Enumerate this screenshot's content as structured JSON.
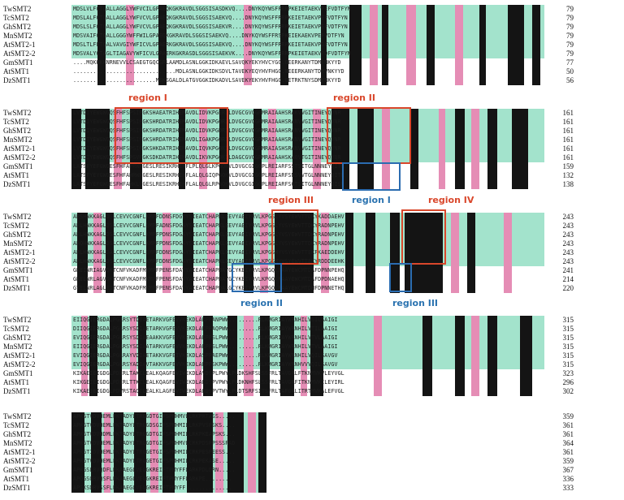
{
  "species": [
    "TwSMT2",
    "TcSMT2",
    "GhSMT2",
    "MnSMT2",
    "AtSMT2-1",
    "AtSMT2-2",
    "GmSMT1",
    "AtSMT1",
    "DzSMT1"
  ],
  "blocks": [
    {
      "rows": [
        {
          "seq": "MDSLVLFCTGALLAGGLYWFVCILGPAEQKGKRAVDLSGGSISASDKVQ....DNYKQYWSFFRRPKEIETAEKVPEFVDTFYN",
          "end": "79"
        },
        {
          "seq": "MDSLALFCTGALLAGGLYWFVCVLGPAEQKGKRAVDLSGGSISAEKVQ....DNYKQYWSFFRRPKEIETAEKVPEFVDTFYN",
          "end": "79"
        },
        {
          "seq": "MDSLSLFCTGALLAGGLYWFVCVLGPAEQKGKRAVDLSGGSISAEKVR....DNYKQYWSFFRRPKEIETAEKVPEFVDTFYN",
          "end": "79"
        },
        {
          "seq": "MDSVAIFCTGALLGGGYWFFWILGPAEQKGKRAVDLSGGSISAEKVQ....DNYKQYWSFFRSPKEIEKAEKVPEFVDTFYN",
          "end": "79"
        },
        {
          "seq": "MDSLTLFFTGALVAVGIYWFICVLGPAERKGKRAVDLSGGSISAEKVQ....DNYKQYWSFFRRPKEIETAEKVPDFVDTFYN",
          "end": "79"
        },
        {
          "seq": "MDSVALYCTAGLTIAGAVYWFICVLGPAERKGKRASDLSGGSISAEKVK....DNYKQYWSFFRRPKEIETAEKVPDFVDTFYN",
          "end": "79"
        },
        {
          "seq": "....MQKKKKNRNEVVLCSAEGTGQCSRLAAMDLASNLGGKIDKAEVLSAVQKYEKYHVCYGG.QEERKANYTDMVNKYYD",
          "end": "77"
        },
        {
          "seq": "...............................MDLASNLGGKIDKSDVLTAVEKYEQYHVFHGG.NEEERKANYTDMVNKYYD",
          "end": "50"
        },
        {
          "seq": ".........................MSKSGALDLATGVGGKIDKADVLSAVEKYEKYHVFHGG.GETRKTNYSDMVNKYYD",
          "end": "56"
        }
      ]
    },
    {
      "rows": [
        {
          "seq": "LVTDIYEWGWGQSFHFSPSIPGKSHAEATRIHEMAVDLIDVKPGERILDVGCGVGGPMRAIAAHSRAKVVGITINEYQVNR",
          "end": "161"
        },
        {
          "seq": "LVTDIYEWGWGQSFHFSPSIPGKSHRDATRIHEMAVDLIDVKPGQRILDVGCGVGGPMRAIAAHSRANVVGITINEYQVNR",
          "end": "161"
        },
        {
          "seq": "LVTDIYEWGWGQSFHFSPSIPGKSHRDATRIHEMAVDLIDVKPGDRILDVGCGVGGPMRAIAAHSRANVVGITINEYQVNR",
          "end": "161"
        },
        {
          "seq": "LVTDIYEWGWGQSFHFSPSIPGKSHRDATRIHEMAVDLIGAKPGQRILDVGCGVGGPMRAIAAHSRANVVGITINEYQVNR",
          "end": "161"
        },
        {
          "seq": "LVTDIYEWGWGQSFHFSPSIPGKSHKDATRIHEMAVDLIQVKPGQKILDVGCGVGGPMRAIASHSRANVVGITINEYQVNR",
          "end": "161"
        },
        {
          "seq": "LVTDIYEWGWGQSFHFSPSVPGKSDKDATRIHEMAVDLIKVKPGQKILDAGCGVGGPMRAIAAHSKAQVTGITINEYQVQR",
          "end": "161"
        },
        {
          "seq": "LATSFYEFGWGESFHFAPRWKGESLRESIKRHEHFLPLQLGLKPGQKVLDVGCGIGGPLREIARFSSTSITGLNNNEYQITR",
          "end": "159"
        },
        {
          "seq": "LATSFYEYGWGESFHFAHRWKGESLRESIKRHEHFLALQLGIQPGQKVLDVGCGIGGPLREIARFSNSVVTGLNNNEYQITR",
          "end": "132"
        },
        {
          "seq": "LATSFYEFGWGESFHFAHKLVGESLRESIKRHEHFLALQLGLRPGQKVLDVGCGIGGPLREIARFSGTSITGLNNNEYQISR",
          "end": "138"
        }
      ]
    },
    {
      "rows": [
        {
          "seq": "ARSHNKKAGLDSLCEVVCGNFLKMPFDDNSFDGVYSIEATCHAPKLEEVYAEIYRVLKPGSLYVSYEWVTTDKYKADDAEHV",
          "end": "243"
        },
        {
          "seq": "ARLHNKKAGLDSLCEVVCGNFLQMPFADNSFDGAYSIEATCHAPKLEEVYAEIYRVLKPGSLYVSYEWVTTDKYRADNPEHV",
          "end": "243"
        },
        {
          "seq": "ARLHNKKAGLDSLCEVVCGNFLKMPFPDNSFDGAYSIEATCHAPKLEEVYAEIYRVLKPGSLYVSYEWVTTDKYRADNPEHV",
          "end": "243"
        },
        {
          "seq": "ARQHNKKAGLDSLCEVVCGNFLKMPFPDNSFDGAYSIEATCHAPKLEEVYAEIYRVLKPGSLYVSYEWVTTDKYRADNPEHV",
          "end": "243"
        },
        {
          "seq": "ARLHNKKAGLDALCEVVCGNFLQMPFDDNSFDGAYSIEATCHAPKLEEVYAEIYRVLKPGSMYVSYEWVTTEKFKAEDDEHV",
          "end": "243"
        },
        {
          "seq": "ARLHNKKAGLDSLCEVVCGNFLKMPFDDNSFDGAYSIEATCHAPKLEEVYAEIFRVLKPGSMYVSYEWVTTEKYRDDDEEHK",
          "end": "243"
        },
        {
          "seq": "GKEINRIAGVDKTCNFVKADFMKMPFPENSFDAVYAIEATCHAPDAYGCYKEIYRVLKPGQCFAAYEWCMTDAFDPNNPEHQ",
          "end": "241"
        },
        {
          "seq": "GKELNRLAGVDKTCNFVKADFMKMPFPENSFDAVYAIEATCHAPDAYGCYKEIYRVLKPGQCFAAYEWCMTDAFDPDNAEHQ",
          "end": "214"
        },
        {
          "seq": "GTELNRLAGLEDTCNFVKADFMKMPFPENSFDAVYAIEATCHAPDALGCYKEIYRVLKPGQCFAAYEWCMTDHFDPNNETHQ",
          "end": "220"
        }
      ]
    },
    {
      "rows": [
        {
          "seq": "EIIQGIERGDALPGLRSYTDIAETARKVGFEVVKEKDLAKPPANPWW.........RLKMGRIAYWRNHILVSILSAIGI",
          "end": "315"
        },
        {
          "seq": "DIIQGIERGDALPGLRSYSDIAETARKVGFEVVKEKDLAKPPAQPWW.........RLKMGRIAYWRNHILVTILAAIGI",
          "end": "315"
        },
        {
          "seq": "EVIQGIERGDALPGLRSYSDIAEAAKKVGFEVVKEKDLAKPPSLPWW.........RLKMGRIAYWRNHILVTVLAAIGI",
          "end": "315"
        },
        {
          "seq": "EIIQGIERGDALPGLRSYSDIAATARKVGFEVVKEKDLAKPPSLPWW.........RLKMGRIAYWRNHILVTVLAAIGI",
          "end": "315"
        },
        {
          "seq": "EVIQGIERGDALPGLRAYVDIAETAKKVGFEIVKEKDLASPPAEPWW.........RLKMGRIAYWRNHILVQILSAVGV",
          "end": "315"
        },
        {
          "seq": "EVIQGIERGDALPGLRSYADIAVTAKKVGFEVVKEKDLAKPPSKPWW.........RLKMGRIAYWRNHVVVQILSAVGV",
          "end": "315"
        },
        {
          "seq": "KIKAEIEIGDGLPDIRLTAKCLEALKQAGFEVIWEKDLAVDSPLPWYLPLDKSHFSLSSFRLTAVGRLFTKNMVKVLEYVGL",
          "end": "323"
        },
        {
          "seq": "KIKGEIEIGDGLPDIRLTTKCLEALKQAGFEVIWEKDLAKDSPVPWYLPLDKNHFSLSSFRLTAVGRFITKNMVKILEYIRL",
          "end": "296"
        },
        {
          "seq": "KIKAEIEIGDGLPDVRSTAQCLEALKLAGFEVIWEKDLAKDSPVTWYLPLDTSRFSITSFRLTAFGRLITRTMVKALEFVGL",
          "end": "302"
        }
      ]
    },
    {
      "rows": [
        {
          "seq": "APKGTVDVHEMLFKTADYLTRGGDTGIFSPMHMVLLRKPRTASS.....",
          "end": "359"
        },
        {
          "seq": "APKGTVDVHEMLFKTADYLTRGGDSGIFSPMHMILLRKPVSPSKS....",
          "end": "361"
        },
        {
          "seq": "APKGTVDVHDMLFKTADYLTRGGDTGIFSPMHMILLRKPKEAPSKS...",
          "end": "361"
        },
        {
          "seq": "APKGTVDVHEMLFKTADYLTRGGDTGIFSPMHMVLCRKPDSPPSSSPAD",
          "end": "364"
        },
        {
          "seq": "APKGTIDVHEMLFKTADYLTRGGETGIFSPMHMILCRKPESPEESS...",
          "end": "361"
        },
        {
          "seq": "APKGTVDVHEMLFKTADYLTRGGETGIFSPMHMILCRKPEKASE.....",
          "end": "359"
        },
        {
          "seq": "APKGSLRVQDFLEKAAEGLVEGGKREIFTPMYFFLARKPDLDRN.....",
          "end": "367"
        },
        {
          "seq": "APQGSQRVQSFLEKAAEGLVEGGKREIFTPMYFFLARKPE........",
          "end": "336"
        },
        {
          "seq": "APSKSDRVSSFLEKAAEGLVEGGKREIFTPMYFF..............",
          "end": "333"
        }
      ]
    }
  ],
  "regions": [
    {
      "label": "region I",
      "color": "red"
    },
    {
      "label": "region II",
      "color": "red"
    },
    {
      "label": "region III",
      "color": "red"
    },
    {
      "label": "region I",
      "color": "blue"
    },
    {
      "label": "region IV",
      "color": "red"
    },
    {
      "label": "region II",
      "color": "blue"
    },
    {
      "label": "region III",
      "color": "blue"
    }
  ],
  "colors": {
    "conserved": "#141414",
    "similar": "#e58db5",
    "partial": "#a3e3cc",
    "red_region": "#d9472b",
    "blue_region": "#2b6cb0"
  }
}
